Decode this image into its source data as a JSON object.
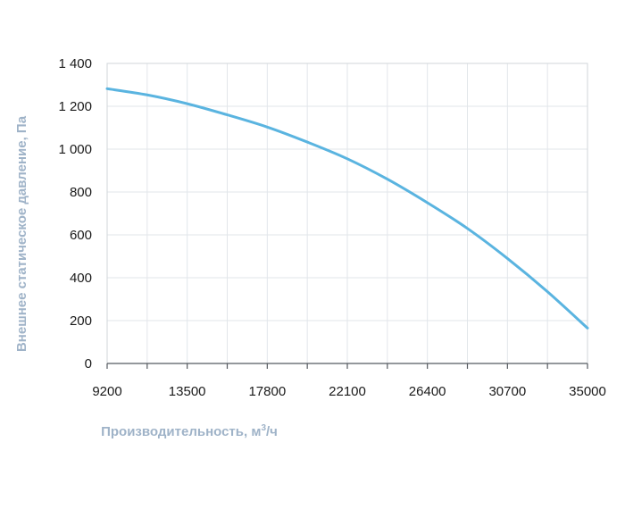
{
  "chart_data": {
    "type": "line",
    "xlabel": "Производительность, м",
    "xlabel_sup": "3",
    "xlabel_tail": "/ч",
    "ylabel": "Внешнее статическое давление, Па",
    "xlim": [
      9200,
      35000
    ],
    "ylim": [
      0,
      1400
    ],
    "x_ticks": [
      9200,
      13500,
      17800,
      22100,
      26400,
      30700,
      35000
    ],
    "x_tick_labels": [
      "9200",
      "13500",
      "17800",
      "22100",
      "26400",
      "30700",
      "35000"
    ],
    "y_ticks": [
      0,
      200,
      400,
      600,
      800,
      1000,
      1200,
      1400
    ],
    "y_tick_labels": [
      "0",
      "200",
      "400",
      "600",
      "800",
      "1 000",
      "1 200",
      "1 400"
    ],
    "grid": true,
    "color": "#5ab4e0",
    "series": [
      {
        "x": [
          9200,
          11350,
          13500,
          15650,
          17800,
          19950,
          22100,
          24250,
          26400,
          28550,
          30700,
          32850,
          35000
        ],
        "values": [
          1282,
          1253,
          1212,
          1160,
          1103,
          1033,
          955,
          860,
          750,
          630,
          490,
          335,
          165
        ]
      }
    ]
  }
}
